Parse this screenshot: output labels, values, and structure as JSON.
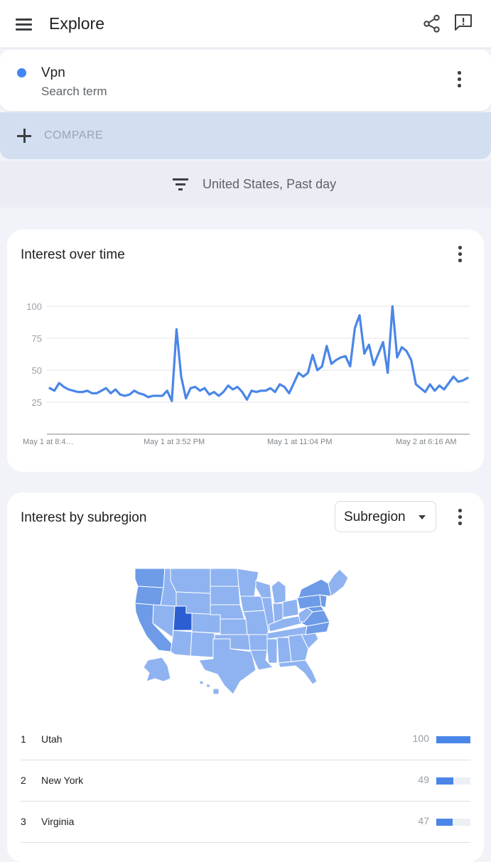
{
  "appbar": {
    "title": "Explore",
    "menu_icon": "hamburger-menu-icon",
    "share_icon": "share-icon",
    "feedback_icon": "feedback-icon"
  },
  "search_term": {
    "name": "Vpn",
    "type": "Search term",
    "dot_color": "#4285f4"
  },
  "compare": {
    "label": "COMPARE"
  },
  "filters": {
    "label": "United States, Past day"
  },
  "interest_over_time": {
    "title": "Interest over time",
    "chart_data": {
      "type": "line",
      "yticks": [
        100,
        75,
        50,
        25
      ],
      "ylim": [
        0,
        100
      ],
      "x_tick_labels": [
        "May 1 at 8:4…",
        "May 1 at 3:52 PM",
        "May 1 at 11:04 PM",
        "May 2 at 6:16 AM"
      ],
      "grid": true,
      "series": [
        {
          "color": "#4a86e8",
          "values": [
            36,
            34,
            40,
            37,
            35,
            34,
            33,
            33,
            34,
            32,
            32,
            34,
            36,
            32,
            35,
            31,
            30,
            31,
            34,
            32,
            31,
            29,
            30,
            30,
            30,
            34,
            26,
            82,
            45,
            28,
            36,
            37,
            34,
            36,
            31,
            33,
            30,
            33,
            38,
            35,
            37,
            33,
            27,
            34,
            33,
            34,
            34,
            36,
            33,
            39,
            37,
            32,
            40,
            48,
            45,
            48,
            62,
            50,
            53,
            69,
            55,
            58,
            60,
            61,
            53,
            83,
            93,
            63,
            70,
            54,
            63,
            72,
            48,
            100,
            60,
            68,
            65,
            58,
            39,
            36,
            33,
            39,
            34,
            38,
            35,
            40,
            45,
            41,
            42,
            44
          ]
        }
      ]
    }
  },
  "interest_by_subregion": {
    "title": "Interest by subregion",
    "selector_label": "Subregion",
    "rows": [
      {
        "rank": "1",
        "name": "Utah",
        "value": 100
      },
      {
        "rank": "2",
        "name": "New York",
        "value": 49
      },
      {
        "rank": "3",
        "name": "Virginia",
        "value": 47
      }
    ],
    "map_colors": {
      "light": "#8fb3f0",
      "medium": "#6d9be8",
      "dark": "#2b5fd1",
      "border": "#ffffff"
    }
  }
}
